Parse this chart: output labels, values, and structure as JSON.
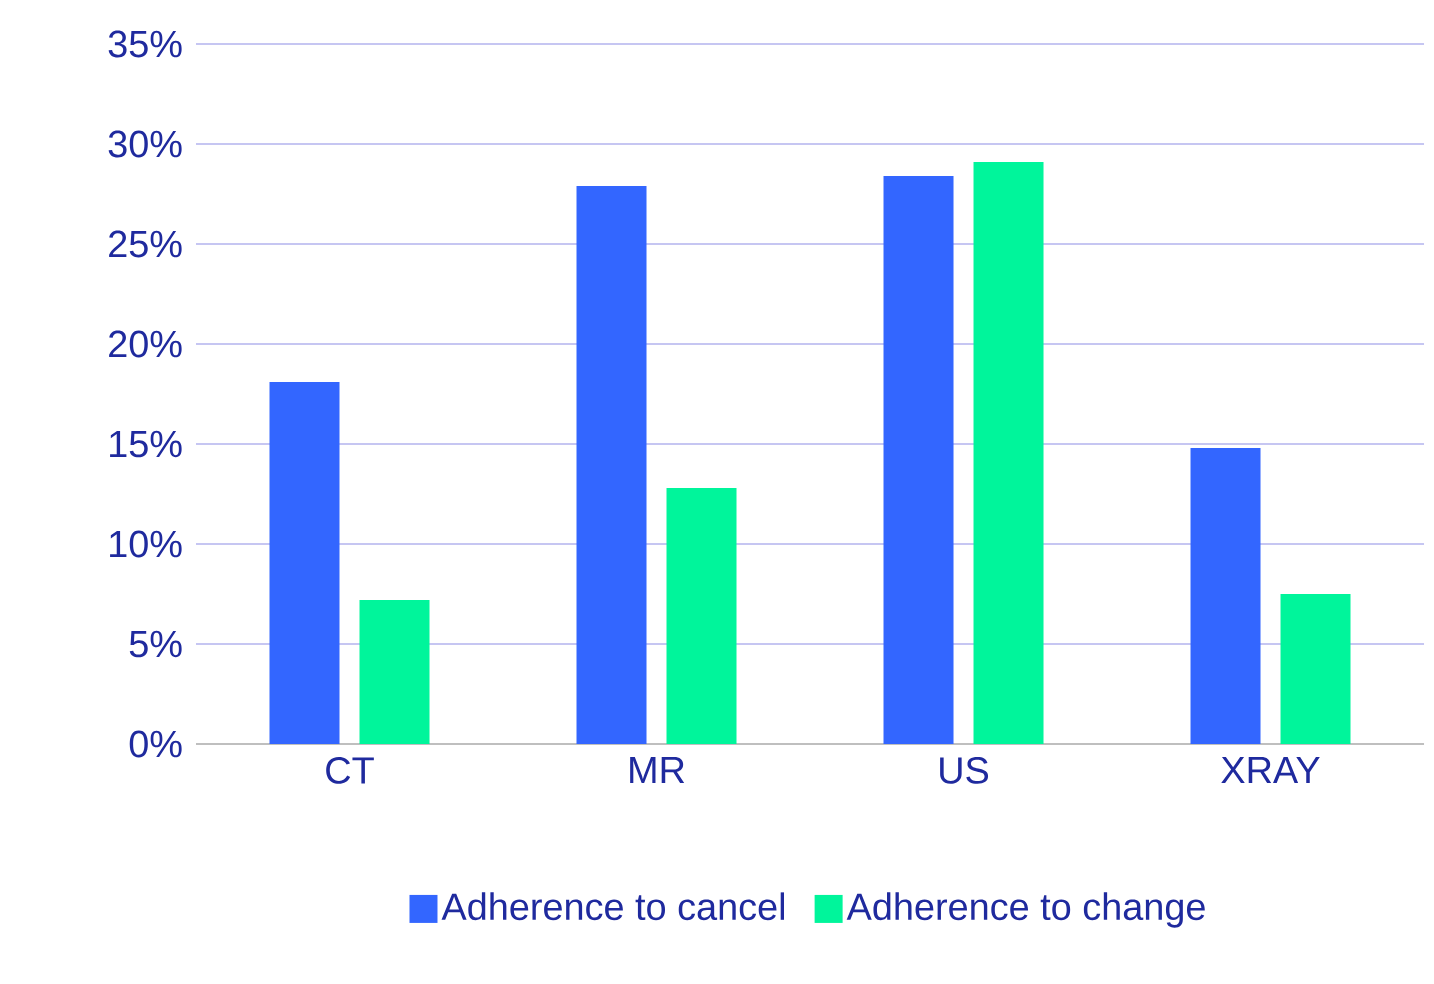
{
  "chart_data": {
    "type": "bar",
    "categories": [
      "CT",
      "MR",
      "US",
      "XRAY"
    ],
    "series": [
      {
        "name": "Adherence to cancel",
        "color": "#3366ff",
        "values": [
          18.1,
          27.9,
          28.4,
          14.8
        ]
      },
      {
        "name": "Adherence to change",
        "color": "#00f59b",
        "values": [
          7.2,
          12.8,
          29.1,
          7.5
        ]
      }
    ],
    "ylim": [
      0,
      35
    ],
    "yticks": [
      {
        "value": 0,
        "label": "0%"
      },
      {
        "value": 5,
        "label": "5%"
      },
      {
        "value": 10,
        "label": "10%"
      },
      {
        "value": 15,
        "label": "15%"
      },
      {
        "value": 20,
        "label": "20%"
      },
      {
        "value": 25,
        "label": "25%"
      },
      {
        "value": 30,
        "label": "30%"
      },
      {
        "value": 35,
        "label": "35%"
      }
    ],
    "grid": "y",
    "legend": "bottom"
  }
}
